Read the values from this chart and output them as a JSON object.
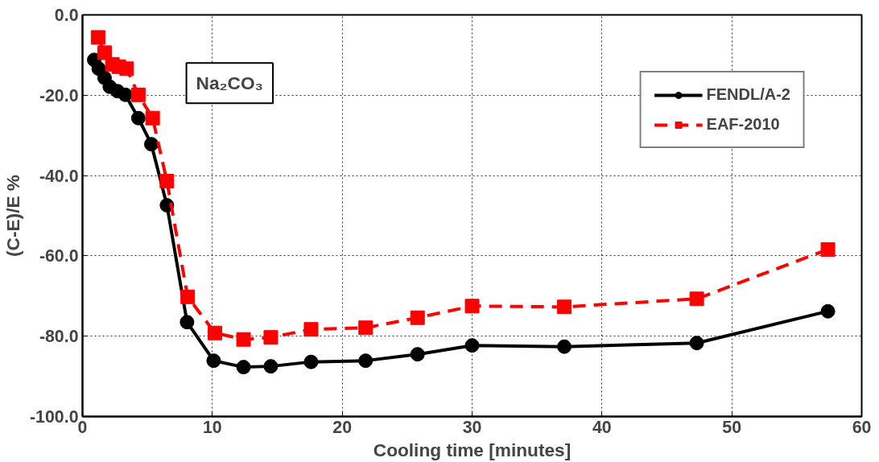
{
  "chart_data": {
    "type": "line",
    "xlabel": "Cooling time [minutes]",
    "ylabel": "(C-E)/E %",
    "xlim": [
      0,
      60
    ],
    "xticks": [
      0,
      10,
      20,
      30,
      40,
      50,
      60
    ],
    "ylim": [
      -100,
      0
    ],
    "yticks": [
      {
        "value": -100,
        "label": "-100.0"
      },
      {
        "value": -80,
        "label": "-80.0"
      },
      {
        "value": -60,
        "label": "-60.0"
      },
      {
        "value": -40,
        "label": "-40.0"
      },
      {
        "value": -20,
        "label": "-20.0"
      },
      {
        "value": 0,
        "label": "0.0"
      }
    ],
    "grid": true,
    "legend": "top right",
    "annotations": [
      "Na₂CO₃"
    ],
    "series": [
      {
        "name": "FENDL/A-2",
        "color": "#000000",
        "marker": "circle",
        "line_style": "solid",
        "x": [
          0.9,
          1.25,
          1.7,
          2.1,
          2.7,
          3.3,
          4.3,
          5.3,
          6.5,
          8.05,
          10.1,
          12.4,
          14.5,
          17.6,
          21.8,
          25.8,
          30.0,
          37.1,
          47.3,
          57.4
        ],
        "values": [
          -11.2,
          -13.4,
          -15.7,
          -17.9,
          -19.0,
          -19.9,
          -25.7,
          -32.2,
          -47.4,
          -76.5,
          -86.1,
          -87.7,
          -87.5,
          -86.4,
          -86.1,
          -84.5,
          -82.3,
          -82.6,
          -81.7,
          -73.8
        ]
      },
      {
        "name": "EAF-2010",
        "color": "#ff0000",
        "marker": "square",
        "line_style": "dashed",
        "x": [
          1.2,
          1.7,
          2.3,
          2.8,
          3.4,
          4.3,
          5.4,
          6.5,
          8.1,
          10.2,
          12.4,
          14.5,
          17.6,
          21.8,
          25.8,
          30.0,
          37.1,
          47.3,
          57.4
        ],
        "values": [
          -5.6,
          -9.4,
          -12.3,
          -12.9,
          -13.4,
          -19.9,
          -25.7,
          -41.4,
          -70.2,
          -79.2,
          -80.8,
          -80.3,
          -78.3,
          -77.9,
          -75.4,
          -72.5,
          -72.7,
          -70.7,
          -58.4
        ]
      }
    ]
  }
}
